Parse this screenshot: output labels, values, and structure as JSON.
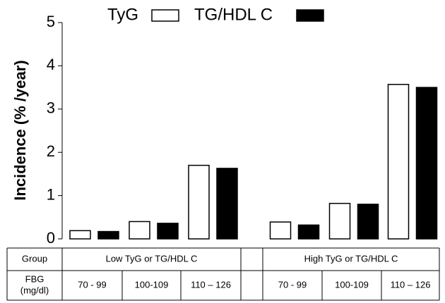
{
  "chart_data": {
    "type": "bar",
    "y_label": "Incidence (% /year)",
    "categories": [
      "70 - 99",
      "100-109",
      "110 – 126",
      "70 - 99",
      "100-109",
      "110 – 126"
    ],
    "groups": [
      "Low TyG or TG/HDL C",
      "High TyG or TG/HDL C"
    ],
    "group_header": "Group",
    "category_header": [
      "FBG",
      "(mg/dl)"
    ],
    "series": [
      {
        "name": "TyG",
        "color": "#ffffff",
        "values": [
          0.19,
          0.4,
          1.7,
          0.39,
          0.82,
          3.57
        ]
      },
      {
        "name": "TG/HDL C",
        "color": "#000000",
        "values": [
          0.17,
          0.36,
          1.63,
          0.32,
          0.8,
          3.5
        ]
      }
    ],
    "ylim": [
      0,
      5
    ],
    "yticks": [
      0,
      1,
      2,
      3,
      4,
      5
    ]
  }
}
